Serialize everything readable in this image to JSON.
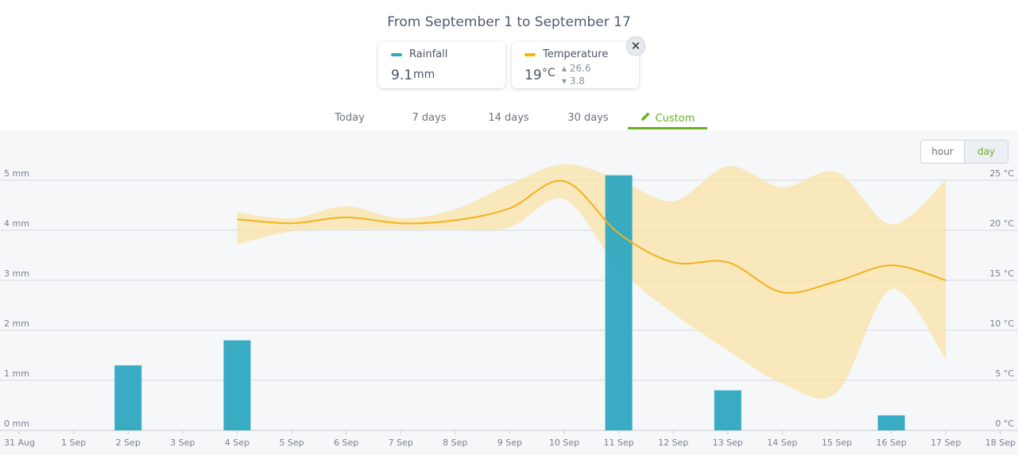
{
  "header": {
    "title": "From September 1 to September 17"
  },
  "cards": {
    "rainfall": {
      "label": "Rainfall",
      "value": "9.1",
      "unit": "mm",
      "color": "#2ea8c0"
    },
    "temperature": {
      "label": "Temperature",
      "value": "19",
      "unit": "°C",
      "max": "26.6",
      "min": "3.8",
      "color": "#f5b700"
    }
  },
  "close_icon": "close-icon",
  "tabs": [
    {
      "label": "Today",
      "active": false
    },
    {
      "label": "7 days",
      "active": false
    },
    {
      "label": "14 days",
      "active": false
    },
    {
      "label": "30 days",
      "active": false
    },
    {
      "label": "Custom",
      "active": true,
      "icon": "pencil-icon"
    }
  ],
  "granularity": {
    "options": [
      "hour",
      "day"
    ],
    "selected": "day"
  },
  "chart_data": {
    "type": "bar+line",
    "x_ticks": [
      "31 Aug",
      "1 Sep",
      "2 Sep",
      "3 Sep",
      "4 Sep",
      "5 Sep",
      "6 Sep",
      "7 Sep",
      "8 Sep",
      "9 Sep",
      "10 Sep",
      "11 Sep",
      "12 Sep",
      "13 Sep",
      "14 Sep",
      "15 Sep",
      "16 Sep",
      "17 Sep",
      "18 Sep"
    ],
    "y_left_ticks": [
      "0 mm",
      "1 mm",
      "2 mm",
      "3 mm",
      "4 mm",
      "5 mm"
    ],
    "y_right_ticks": [
      "0 °C",
      "5 °C",
      "10 °C",
      "15 °C",
      "20 °C",
      "25 °C"
    ],
    "ylim_left": [
      0,
      5
    ],
    "ylim_right": [
      0,
      25
    ],
    "grid": true,
    "rainfall": {
      "name": "Rainfall",
      "color": "#2ea8c0",
      "bars": [
        {
          "x": 2,
          "value": 1.3
        },
        {
          "x": 4,
          "value": 1.8
        },
        {
          "x": 11,
          "value": 5.1
        },
        {
          "x": 13,
          "value": 0.8
        },
        {
          "x": 16,
          "value": 0.3
        }
      ]
    },
    "temperature": {
      "name": "Temperature",
      "color": "#f2b31c",
      "band_color": "#f8e3a7",
      "points": [
        {
          "x": 4,
          "avg": 21.1,
          "min": 18.6,
          "max": 21.8
        },
        {
          "x": 5,
          "avg": 20.7,
          "min": 19.9,
          "max": 21.2
        },
        {
          "x": 6,
          "avg": 21.3,
          "min": 20.1,
          "max": 22.4
        },
        {
          "x": 7,
          "avg": 20.7,
          "min": 20.1,
          "max": 21.2
        },
        {
          "x": 8,
          "avg": 21.0,
          "min": 20.1,
          "max": 22.1
        },
        {
          "x": 9,
          "avg": 22.2,
          "min": 20.3,
          "max": 24.6
        },
        {
          "x": 10,
          "avg": 24.9,
          "min": 23.1,
          "max": 26.6
        },
        {
          "x": 11,
          "avg": 19.7,
          "min": 16.2,
          "max": 25.1
        },
        {
          "x": 12,
          "avg": 16.8,
          "min": 11.7,
          "max": 22.9
        },
        {
          "x": 13,
          "avg": 16.8,
          "min": 8.0,
          "max": 26.4
        },
        {
          "x": 14,
          "avg": 13.8,
          "min": 4.7,
          "max": 24.3
        },
        {
          "x": 15,
          "avg": 14.9,
          "min": 3.8,
          "max": 25.8
        },
        {
          "x": 16,
          "avg": 16.5,
          "min": 14.1,
          "max": 20.6
        },
        {
          "x": 17,
          "avg": 15.0,
          "min": 7.1,
          "max": 25.0
        }
      ]
    }
  }
}
